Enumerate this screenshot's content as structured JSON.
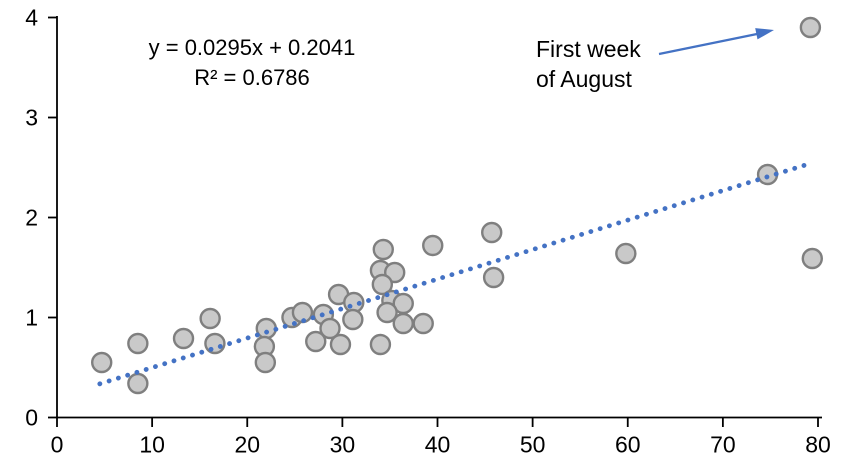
{
  "chart": {
    "equation_line1": "y = 0.0295x + 0.2041",
    "equation_line2": "R² = 0.6786",
    "annotation_line1": "First week",
    "annotation_line2": "of August"
  },
  "chart_data": {
    "type": "scatter",
    "title": "",
    "xlabel": "",
    "ylabel": "",
    "xlim": [
      0,
      80
    ],
    "ylim": [
      0,
      4
    ],
    "x_ticks": [
      0,
      10,
      20,
      30,
      40,
      50,
      60,
      70,
      80
    ],
    "y_ticks": [
      0,
      1,
      2,
      3,
      4
    ],
    "grid": false,
    "legend": false,
    "points": [
      [
        4.7,
        0.55
      ],
      [
        8.5,
        0.74
      ],
      [
        8.5,
        0.34
      ],
      [
        13.3,
        0.79
      ],
      [
        16.1,
        0.99
      ],
      [
        16.6,
        0.74
      ],
      [
        22.0,
        0.89
      ],
      [
        21.8,
        0.71
      ],
      [
        21.9,
        0.55
      ],
      [
        24.7,
        1.0
      ],
      [
        25.8,
        1.05
      ],
      [
        27.2,
        0.76
      ],
      [
        28.0,
        1.03
      ],
      [
        28.7,
        0.89
      ],
      [
        29.6,
        1.23
      ],
      [
        29.8,
        0.73
      ],
      [
        31.2,
        1.15
      ],
      [
        31.1,
        0.98
      ],
      [
        34.0,
        0.73
      ],
      [
        34.3,
        1.68
      ],
      [
        34.0,
        1.47
      ],
      [
        35.5,
        1.45
      ],
      [
        34.2,
        1.33
      ],
      [
        35.2,
        1.17
      ],
      [
        36.4,
        1.14
      ],
      [
        34.7,
        1.05
      ],
      [
        36.4,
        0.94
      ],
      [
        38.5,
        0.94
      ],
      [
        39.5,
        1.72
      ],
      [
        45.7,
        1.85
      ],
      [
        45.9,
        1.4
      ],
      [
        59.8,
        1.64
      ],
      [
        74.7,
        2.43
      ],
      [
        79.2,
        3.9
      ],
      [
        79.4,
        1.59
      ]
    ],
    "trendline": {
      "type": "linear",
      "slope": 0.0295,
      "intercept": 0.2041,
      "r_squared": 0.6786,
      "equation_text": "y = 0.0295x + 0.2041",
      "r2_text": "R² = 0.6786",
      "x_start": 4.5,
      "x_end": 79.3,
      "style": "dotted"
    },
    "annotation": {
      "text": "First week of August",
      "target_point": [
        79.2,
        3.9
      ]
    },
    "style": {
      "marker_fill": "#C9C9C9",
      "marker_stroke": "#7F7F7F",
      "marker_radius": 9.5,
      "trendline_color": "#4472C4",
      "arrow_color": "#4472C4",
      "axis_color": "#000000",
      "text_color": "#000000"
    }
  }
}
